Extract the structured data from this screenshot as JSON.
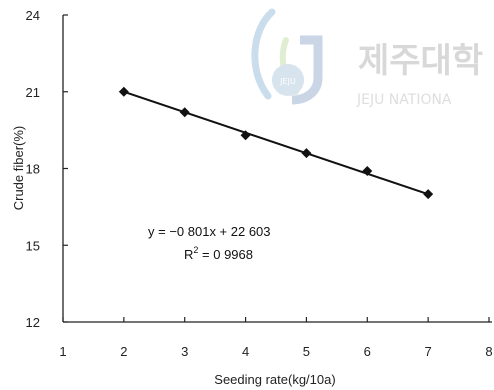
{
  "watermark": {
    "text_korean": "제주대학",
    "text_latin": "JEJU NATIONA",
    "emblem_text": "JEJU"
  },
  "chart_data": {
    "type": "scatter",
    "xlabel": "Seeding rate(kg/10a)",
    "ylabel": "Crude fiber(%)",
    "xlim": [
      1,
      8
    ],
    "ylim": [
      12,
      24
    ],
    "xticks": [
      "1",
      "2",
      "3",
      "4",
      "5",
      "6",
      "7",
      "8"
    ],
    "yticks": [
      "12",
      "15",
      "18",
      "21",
      "24"
    ],
    "grid": false,
    "series": [
      {
        "x": [
          2,
          3,
          4,
          5,
          6,
          7
        ],
        "y": [
          21.0,
          20.2,
          19.3,
          18.6,
          17.9,
          17.0
        ],
        "marker": "diamond"
      }
    ],
    "trendline": {
      "slope": -0.801,
      "intercept": 22.603,
      "x_range": [
        2,
        7
      ]
    },
    "annotation": {
      "equation": "y = −0 801x + 22 603",
      "r2_label": "R",
      "r2_sup": "2",
      "r2_value": " = 0 9968"
    },
    "colors": {
      "marker": "#111111",
      "line": "#111111",
      "axis": "#222222"
    }
  }
}
